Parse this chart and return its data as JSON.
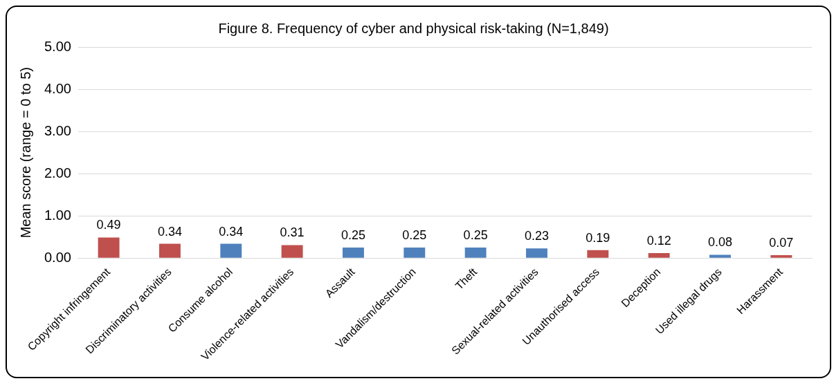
{
  "chart_data": {
    "type": "bar",
    "title": "Figure 8. Frequency of cyber and physical risk-taking (N=1,849)",
    "ylabel": "Mean score (range = 0 to 5)",
    "categories": [
      "Copyright infringement",
      "Discriminatory activities",
      "Consume alcohol",
      "Violence-related activities",
      "Assault",
      "Vandalism/destruction",
      "Theft",
      "Sexual-related activities",
      "Unauthorised access",
      "Deception",
      "Used illegal drugs",
      "Harassment"
    ],
    "values": [
      0.49,
      0.34,
      0.34,
      0.31,
      0.25,
      0.25,
      0.25,
      0.23,
      0.19,
      0.12,
      0.08,
      0.07
    ],
    "colors": [
      "#c0504d",
      "#c0504d",
      "#4f81bd",
      "#c0504d",
      "#4f81bd",
      "#4f81bd",
      "#4f81bd",
      "#4f81bd",
      "#c0504d",
      "#c0504d",
      "#4f81bd",
      "#c0504d"
    ],
    "ylim": [
      0,
      5
    ],
    "yticks": [
      {
        "value": 0,
        "label": "0.00"
      },
      {
        "value": 1,
        "label": "1.00"
      },
      {
        "value": 2,
        "label": "2.00"
      },
      {
        "value": 3,
        "label": "3.00"
      },
      {
        "value": 4,
        "label": "4.00"
      },
      {
        "value": 5,
        "label": "5.00"
      }
    ],
    "grid": "y",
    "data_labels": true,
    "legend": false
  }
}
